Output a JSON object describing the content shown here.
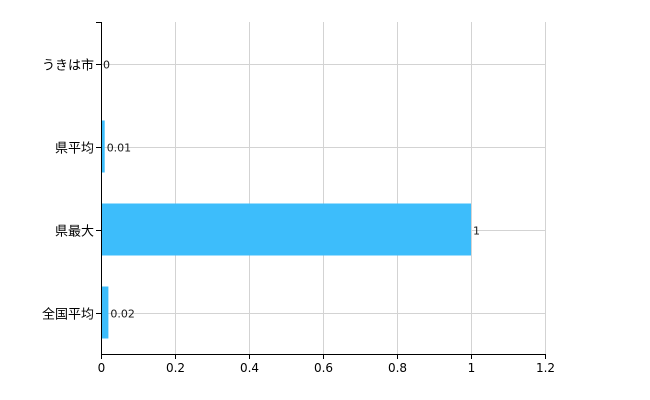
{
  "chart_data": {
    "type": "bar",
    "orientation": "horizontal",
    "categories": [
      "うきは市",
      "県平均",
      "県最大",
      "全国平均"
    ],
    "values": [
      0,
      0.01,
      1,
      0.02
    ],
    "data_labels": [
      "0",
      "0.01",
      "1",
      "0.02"
    ],
    "xlim": [
      0,
      1.2
    ],
    "xticks": [
      "0",
      "0.2",
      "0.4",
      "0.6",
      "0.8",
      "1",
      "1.2"
    ],
    "grid": true,
    "bar_color": "#3dbdfb",
    "title": "",
    "xlabel": "",
    "ylabel": ""
  }
}
